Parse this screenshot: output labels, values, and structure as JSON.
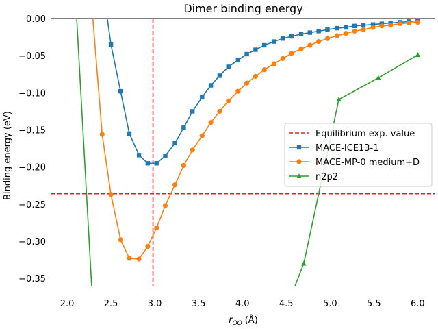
{
  "chart_data": {
    "type": "line",
    "title": "Dimer binding energy",
    "xlabel_main": "r",
    "xlabel_sub": "OO",
    "xlabel_unit": "(Å)",
    "ylabel": "Binding energy (eV)",
    "xlim": [
      1.82,
      6.2
    ],
    "ylim": [
      -0.36,
      0.0
    ],
    "xticks": [
      2.0,
      2.5,
      3.0,
      3.5,
      4.0,
      4.5,
      5.0,
      5.5,
      6.0
    ],
    "xtick_labels": [
      "2.0",
      "2.5",
      "3.0",
      "3.5",
      "4.0",
      "4.5",
      "5.0",
      "5.5",
      "6.0"
    ],
    "yticks": [
      0.0,
      -0.05,
      -0.1,
      -0.15,
      -0.2,
      -0.25,
      -0.3,
      -0.35
    ],
    "ytick_labels": [
      "0.00",
      "−0.05",
      "−0.10",
      "−0.15",
      "−0.20",
      "−0.25",
      "−0.30",
      "−0.35"
    ],
    "legend_position": "right",
    "reference_lines": [
      {
        "name": "Equilibrium exp. value",
        "orientation": "vertical",
        "value": 2.98,
        "color": "#d62728"
      },
      {
        "orientation": "horizontal",
        "value": -0.236,
        "color": "#d62728"
      }
    ],
    "series": [
      {
        "name": "MACE-ICE13-1",
        "color": "#1f77b4",
        "marker": "square",
        "x": [
          2.4,
          2.5,
          2.61,
          2.71,
          2.82,
          2.92,
          3.02,
          3.12,
          3.23,
          3.33,
          3.43,
          3.54,
          3.64,
          3.74,
          3.84,
          3.95,
          4.05,
          4.15,
          4.25,
          4.36,
          4.46,
          4.56,
          4.67,
          4.77,
          4.87,
          4.97,
          5.08,
          5.18,
          5.28,
          5.38,
          5.49,
          5.59,
          5.69,
          5.8,
          5.9,
          6.0
        ],
        "y": [
          0.05,
          -0.035,
          -0.098,
          -0.155,
          -0.184,
          -0.195,
          -0.195,
          -0.185,
          -0.168,
          -0.147,
          -0.125,
          -0.106,
          -0.09,
          -0.077,
          -0.065,
          -0.056,
          -0.048,
          -0.042,
          -0.036,
          -0.031,
          -0.027,
          -0.024,
          -0.021,
          -0.019,
          -0.017,
          -0.015,
          -0.013,
          -0.012,
          -0.01,
          -0.009,
          -0.008,
          -0.007,
          -0.006,
          -0.005,
          -0.004,
          -0.003
        ]
      },
      {
        "name": "MACE-MP-0 medium+D",
        "color": "#ff7f0e",
        "marker": "circle",
        "x": [
          2.28,
          2.4,
          2.5,
          2.61,
          2.71,
          2.82,
          2.92,
          3.02,
          3.12,
          3.23,
          3.33,
          3.43,
          3.54,
          3.64,
          3.74,
          3.84,
          3.95,
          4.05,
          4.15,
          4.25,
          4.36,
          4.46,
          4.56,
          4.67,
          4.77,
          4.87,
          4.97,
          5.08,
          5.18,
          5.28,
          5.38,
          5.49,
          5.59,
          5.69,
          5.8,
          5.9,
          6.0
        ],
        "y": [
          0.02,
          -0.156,
          -0.237,
          -0.298,
          -0.323,
          -0.324,
          -0.307,
          -0.282,
          -0.252,
          -0.224,
          -0.198,
          -0.177,
          -0.158,
          -0.14,
          -0.125,
          -0.111,
          -0.098,
          -0.087,
          -0.078,
          -0.069,
          -0.061,
          -0.054,
          -0.047,
          -0.041,
          -0.036,
          -0.031,
          -0.027,
          -0.023,
          -0.02,
          -0.017,
          -0.015,
          -0.012,
          -0.01,
          -0.009,
          -0.007,
          -0.006,
          -0.005
        ]
      },
      {
        "name": "n2p2",
        "color": "#2ca02c",
        "marker": "triangle",
        "x": [
          2.1,
          2.28,
          4.6,
          4.7,
          5.1,
          5.55,
          6.0
        ],
        "y": [
          0.02,
          -0.36,
          -0.36,
          -0.33,
          -0.109,
          -0.08,
          -0.049
        ],
        "marker_mask": [
          false,
          false,
          false,
          true,
          true,
          true,
          true
        ]
      }
    ]
  }
}
